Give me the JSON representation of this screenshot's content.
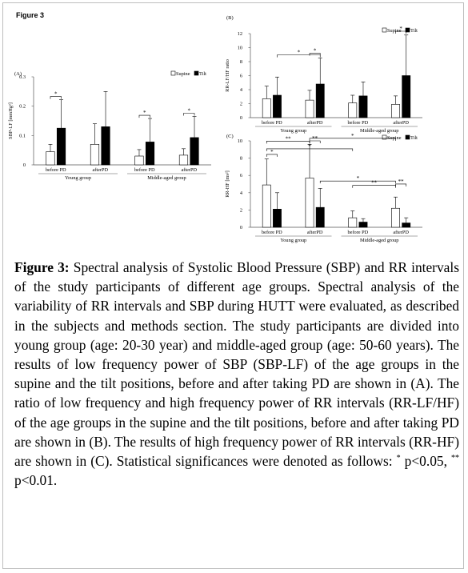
{
  "figure_label": "Figure 3",
  "caption": {
    "title": "Figure 3:",
    "body": "Spectral analysis of Systolic Blood Pressure (SBP) and RR intervals of the study participants of different age groups. Spectral analysis of the variability of RR intervals and SBP during HUTT were evaluated, as described in the subjects and methods section. The study participants are divided into young group (age: 20-30 year) and middle-aged group (age: 50-60 years). The results of low frequency power of SBP (SBP-LF) of the age groups in the supine and the tilt positions, before and after taking PD are shown in (A). The ratio of low frequency and high frequency power of RR intervals (RR-LF/HF) of the age groups in the supine and the tilt positions, before and after taking PD are shown in (B). The results of high frequency power of RR intervals (RR-HF) are shown in (C). Statistical significances were denoted as follows: ",
    "sig1_mark": "*",
    "sig1_text": " p<0.05, ",
    "sig2_mark": "**",
    "sig2_text": " p<0.01."
  },
  "colors": {
    "supine": "#ffffff",
    "tilt": "#000000",
    "stroke": "#000000",
    "axis": "#555555"
  },
  "chart_data": [
    {
      "id": "A",
      "panel_label": "(A)",
      "type": "bar",
      "ylabel": "SBP-LF [mmHg²]",
      "ylim": [
        0,
        0.3
      ],
      "yticks": [
        0,
        0.1,
        0.2,
        0.3
      ],
      "ytick_labels": [
        "0",
        "0.1",
        "0.2",
        "0.3"
      ],
      "legend": {
        "position": "top-right",
        "entries": [
          "Supine",
          "Tilt"
        ]
      },
      "categories": [
        "before PD",
        "afterPD",
        "before PD",
        "afterPD"
      ],
      "groups": [
        {
          "label": "Young group",
          "span": [
            0,
            1
          ]
        },
        {
          "label": "Middle-aged group",
          "span": [
            2,
            3
          ]
        }
      ],
      "series": [
        {
          "name": "Supine",
          "values": [
            0.045,
            0.07,
            0.03,
            0.033
          ],
          "errors": [
            0.025,
            0.07,
            0.022,
            0.022
          ]
        },
        {
          "name": "Tilt",
          "values": [
            0.125,
            0.13,
            0.078,
            0.093
          ],
          "errors": [
            0.097,
            0.12,
            0.08,
            0.072
          ]
        }
      ],
      "annotations": [
        {
          "label": "*",
          "from": [
            0,
            0
          ],
          "to": [
            0,
            1
          ]
        },
        {
          "label": "*",
          "from": [
            2,
            0
          ],
          "to": [
            2,
            1
          ]
        },
        {
          "label": "*",
          "from": [
            3,
            0
          ],
          "to": [
            3,
            1
          ]
        }
      ]
    },
    {
      "id": "B",
      "panel_label": "(B)",
      "type": "bar",
      "ylabel": "RR-LF/HF ratio",
      "ylim": [
        0,
        12
      ],
      "yticks": [
        0,
        2,
        4,
        6,
        8,
        10,
        12
      ],
      "ytick_labels": [
        "0",
        "2",
        "4",
        "6",
        "8",
        "10",
        "12"
      ],
      "legend": {
        "position": "top-right",
        "entries": [
          "Supine",
          "Tilt"
        ]
      },
      "categories": [
        "before PD",
        "afterPD",
        "before PD",
        "afterPD"
      ],
      "groups": [
        {
          "label": "Young group",
          "span": [
            0,
            1
          ]
        },
        {
          "label": "Middle-aged group",
          "span": [
            2,
            3
          ]
        }
      ],
      "series": [
        {
          "name": "Supine",
          "values": [
            2.7,
            2.5,
            2.1,
            1.9
          ],
          "errors": [
            1.8,
            1.4,
            1.1,
            1.2
          ]
        },
        {
          "name": "Tilt",
          "values": [
            3.2,
            4.8,
            3.1,
            6.0
          ],
          "errors": [
            2.6,
            3.7,
            2.0,
            5.8
          ]
        }
      ],
      "annotations": [
        {
          "label": "*",
          "from": [
            0,
            1
          ],
          "to": [
            1,
            1
          ]
        },
        {
          "label": "*",
          "from": [
            1,
            0
          ],
          "to": [
            1,
            1
          ]
        },
        {
          "label": "*",
          "from": [
            3,
            0
          ],
          "to": [
            3,
            1
          ]
        }
      ]
    },
    {
      "id": "C",
      "panel_label": "(C)",
      "type": "bar",
      "ylabel": "RR-HF [ms²]",
      "ylim": [
        0,
        10
      ],
      "yticks": [
        0,
        2,
        4,
        6,
        8,
        10
      ],
      "ytick_labels": [
        "0",
        "2",
        "4",
        "6",
        "8",
        "10"
      ],
      "legend": {
        "position": "top-right",
        "entries": [
          "Supine",
          "Tilt"
        ]
      },
      "categories": [
        "before PD",
        "afterPD",
        "before PD",
        "afterPD"
      ],
      "groups": [
        {
          "label": "Young group",
          "span": [
            0,
            1
          ]
        },
        {
          "label": "Middle-aged group",
          "span": [
            2,
            3
          ]
        }
      ],
      "series": [
        {
          "name": "Supine",
          "values": [
            4.9,
            5.7,
            1.1,
            2.2
          ],
          "errors": [
            3.0,
            3.9,
            0.8,
            1.3
          ]
        },
        {
          "name": "Tilt",
          "values": [
            2.1,
            2.3,
            0.6,
            0.5
          ],
          "errors": [
            1.9,
            2.2,
            0.4,
            0.6
          ]
        }
      ],
      "annotations": [
        {
          "label": "**",
          "from": [
            0,
            0
          ],
          "to": [
            1,
            0
          ]
        },
        {
          "label": "*",
          "from": [
            0,
            0
          ],
          "to": [
            0,
            1
          ]
        },
        {
          "label": "*",
          "from": [
            1,
            0
          ],
          "to": [
            3,
            0
          ]
        },
        {
          "label": "*",
          "from": [
            1,
            1
          ],
          "to": [
            3,
            0
          ]
        },
        {
          "label": "**",
          "from": [
            1,
            0
          ],
          "to": [
            1,
            1
          ]
        },
        {
          "label": "*",
          "from": [
            0,
            0
          ],
          "to": [
            2,
            0
          ]
        },
        {
          "label": "**",
          "from": [
            2,
            0
          ],
          "to": [
            3,
            0
          ]
        },
        {
          "label": "**",
          "from": [
            3,
            0
          ],
          "to": [
            3,
            1
          ]
        }
      ]
    }
  ]
}
